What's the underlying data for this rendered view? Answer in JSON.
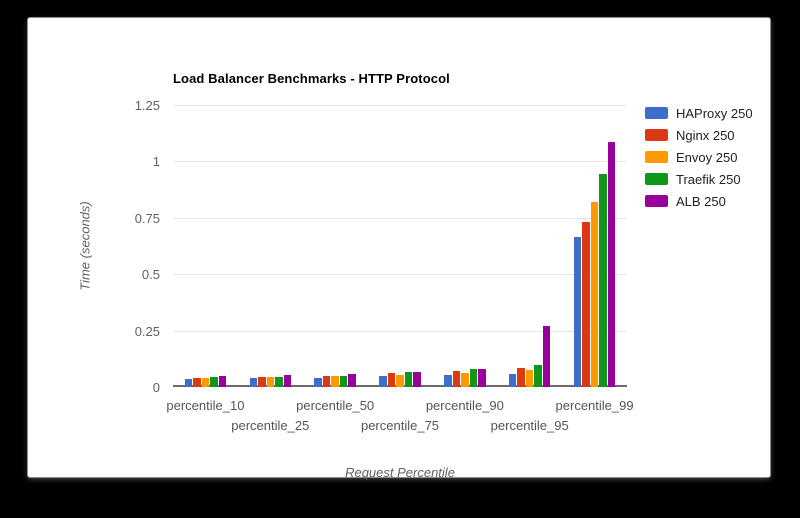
{
  "window": {
    "background_color": "#000000",
    "card_background": "#ffffff"
  },
  "chart_data": {
    "type": "bar",
    "title": "Load Balancer Benchmarks - HTTP Protocol",
    "xlabel": "Request Percentile",
    "ylabel": "Time (seconds)",
    "categories": [
      "percentile_10",
      "percentile_25",
      "percentile_50",
      "percentile_75",
      "percentile_90",
      "percentile_95",
      "percentile_99"
    ],
    "series": [
      {
        "name": "HAProxy 250",
        "color": "#3E6EC9",
        "values": [
          0.037,
          0.04,
          0.042,
          0.048,
          0.053,
          0.056,
          0.666
        ]
      },
      {
        "name": "Nginx 250",
        "color": "#DC3912",
        "values": [
          0.042,
          0.046,
          0.05,
          0.06,
          0.072,
          0.083,
          0.733
        ]
      },
      {
        "name": "Envoy 250",
        "color": "#FF9900",
        "values": [
          0.042,
          0.046,
          0.047,
          0.053,
          0.064,
          0.075,
          0.82
        ]
      },
      {
        "name": "Traefik 250",
        "color": "#109618",
        "values": [
          0.043,
          0.046,
          0.05,
          0.065,
          0.08,
          0.098,
          0.943
        ]
      },
      {
        "name": "ALB 250",
        "color": "#990099",
        "values": [
          0.047,
          0.052,
          0.056,
          0.065,
          0.078,
          0.272,
          1.085
        ]
      }
    ],
    "ylim": [
      0,
      1.25
    ],
    "yticks": [
      0,
      0.25,
      0.5,
      0.75,
      1,
      1.25
    ],
    "ytick_labels": [
      "0",
      "0.25",
      "0.5",
      "0.75",
      "1",
      "1.25"
    ],
    "grid": true,
    "legend_position": "right",
    "grid_color": "#e6e6e6",
    "axis_line_color": "#6b6b6b"
  }
}
